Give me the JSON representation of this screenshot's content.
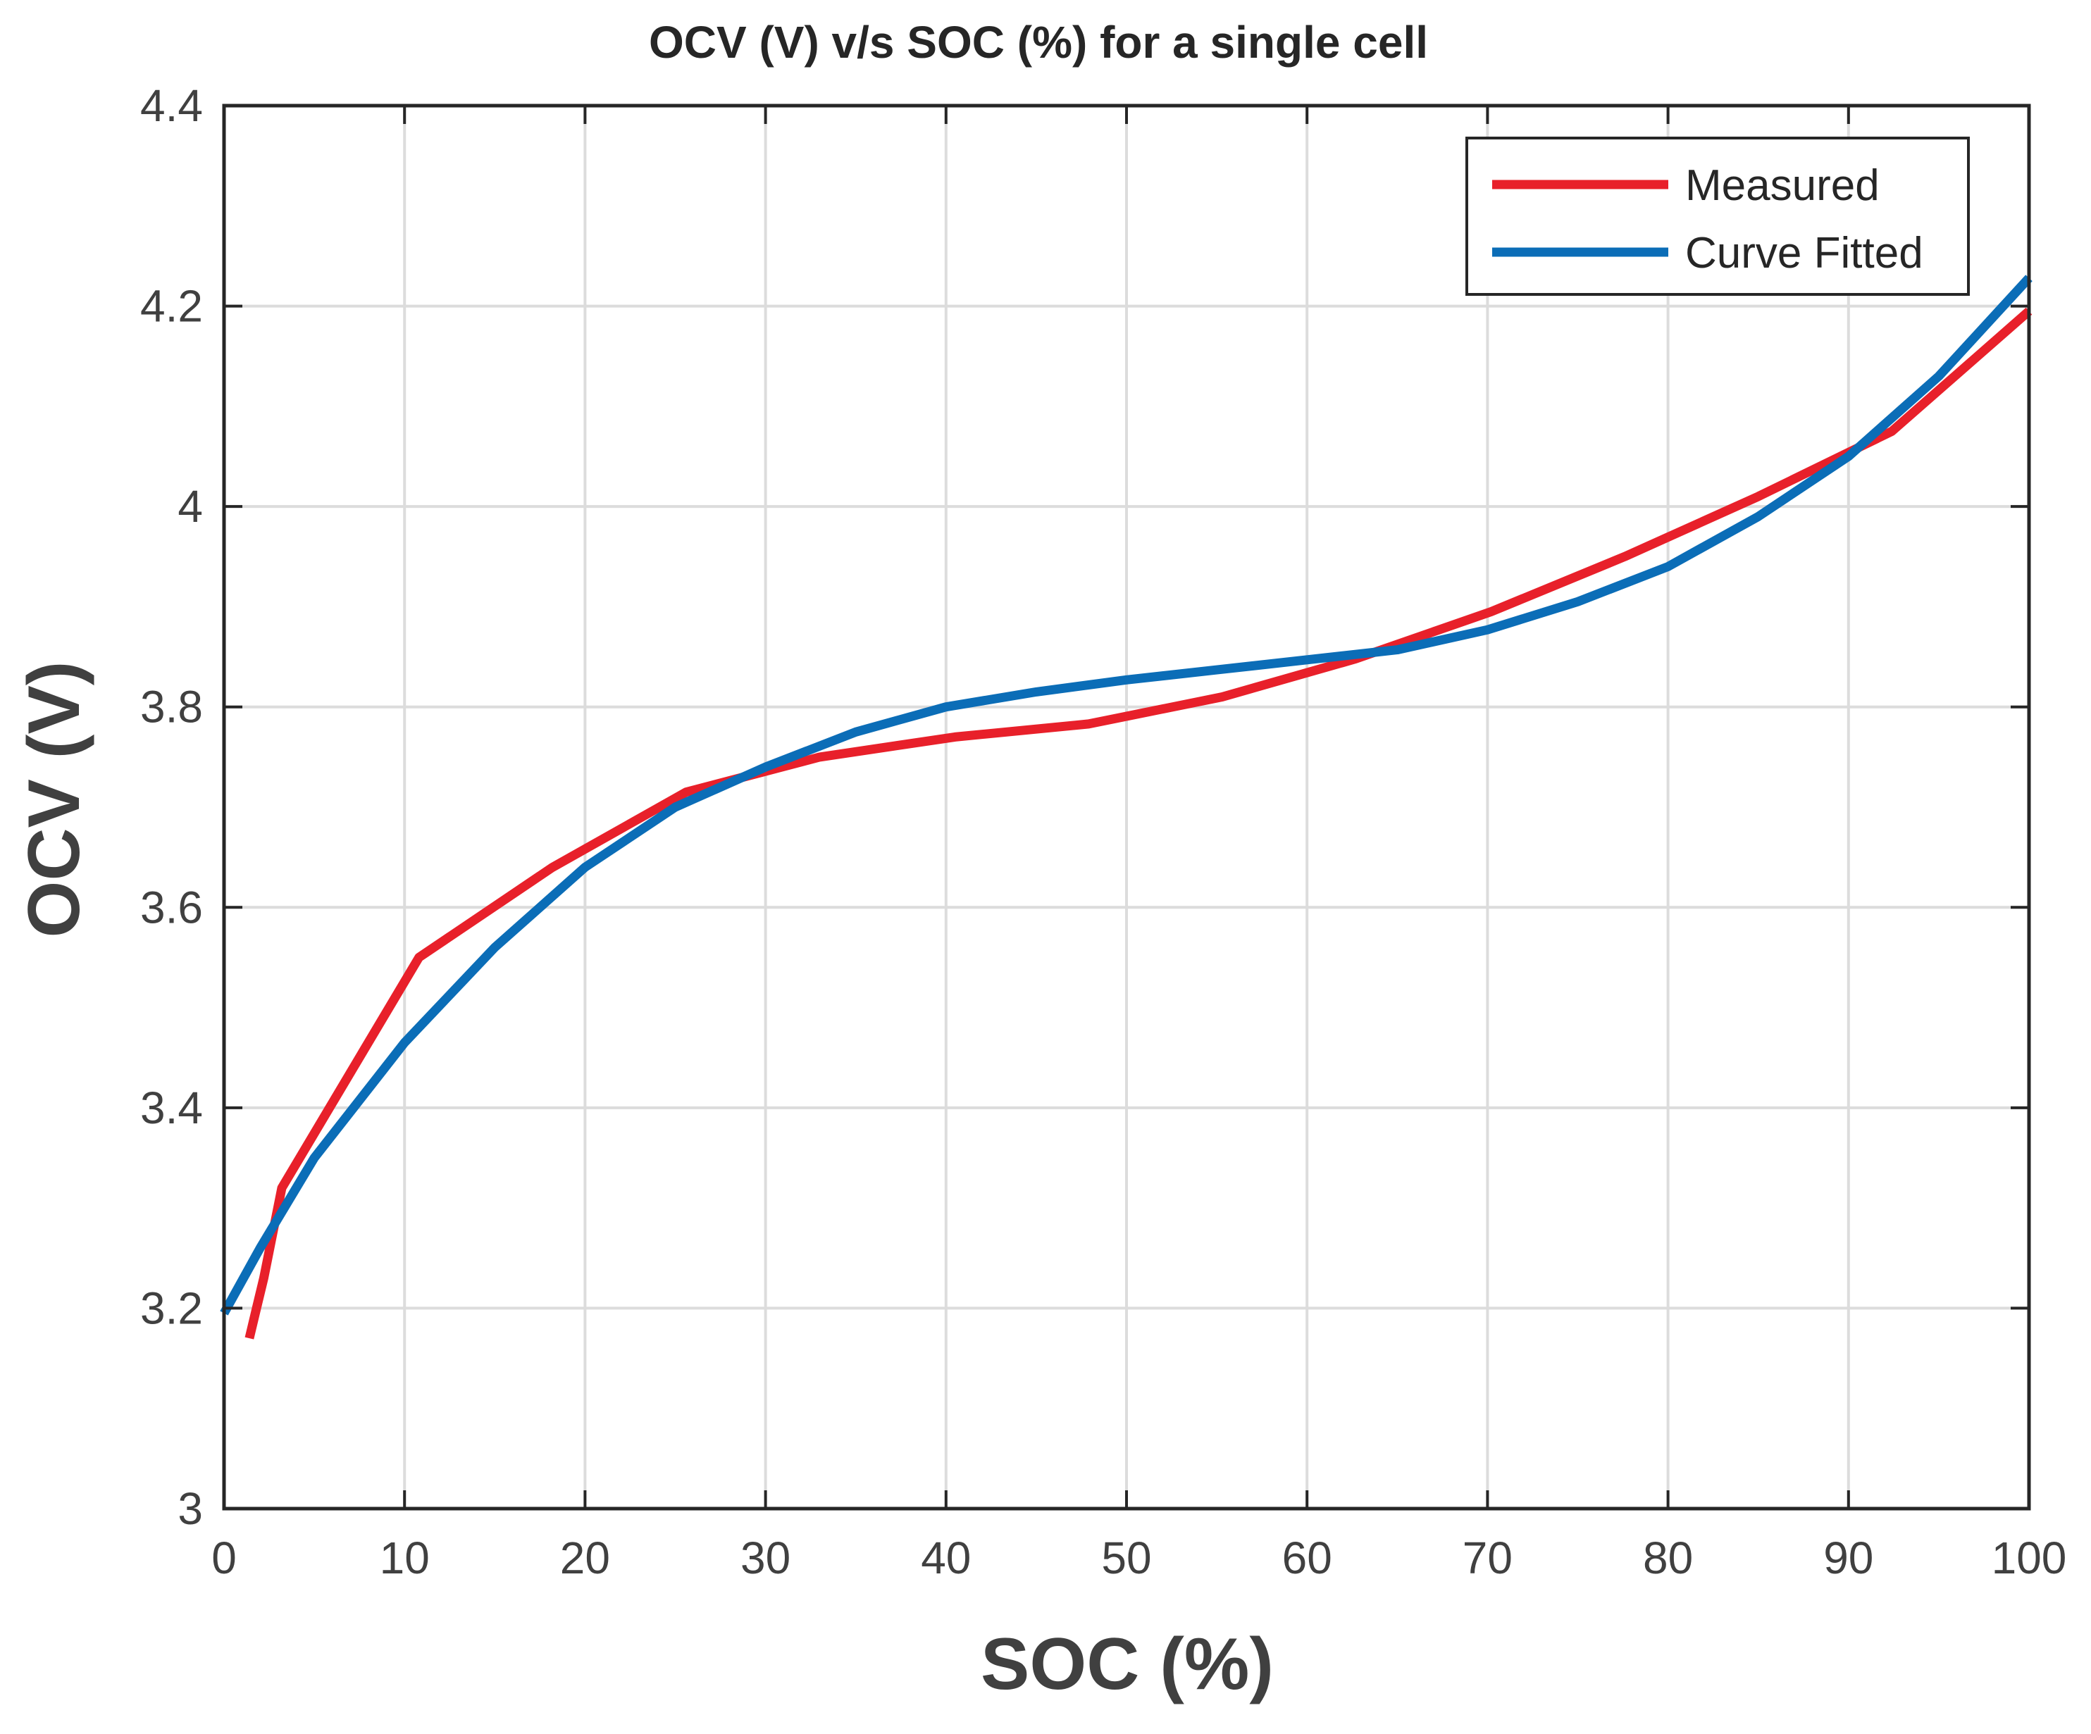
{
  "chart_data": {
    "type": "line",
    "title": "OCV (V) v/s SOC (%) for a single cell",
    "xlabel": "SOC (%)",
    "ylabel": "OCV (V)",
    "xlim": [
      0,
      100
    ],
    "ylim": [
      3,
      4.4
    ],
    "xticks": [
      0,
      10,
      20,
      30,
      40,
      50,
      60,
      70,
      80,
      90,
      100
    ],
    "xtick_labels": [
      "0",
      "10",
      "20",
      "30",
      "40",
      "50",
      "60",
      "70",
      "80",
      "90",
      "100"
    ],
    "yticks": [
      3,
      3.2,
      3.4,
      3.6,
      3.8,
      4,
      4.2,
      4.4
    ],
    "ytick_labels": [
      "3",
      "3.2",
      "3.4",
      "3.6",
      "3.8",
      "4",
      "4.2",
      "4.4"
    ],
    "grid": true,
    "legend_position": "top-right",
    "series": [
      {
        "name": "Measured",
        "color": "#e8202a",
        "x": [
          1.4,
          1.8,
          2.2,
          3.2,
          10.8,
          18.2,
          25.6,
          33.0,
          40.5,
          47.9,
          55.3,
          62.7,
          70.2,
          77.6,
          85.0,
          92.4,
          100
        ],
        "y": [
          3.17,
          3.2,
          3.23,
          3.32,
          3.55,
          3.64,
          3.715,
          3.75,
          3.77,
          3.783,
          3.81,
          3.848,
          3.895,
          3.95,
          4.01,
          4.075,
          4.195
        ]
      },
      {
        "name": "Curve Fitted",
        "color": "#0b6db7",
        "x": [
          0,
          2,
          5,
          10,
          15,
          20,
          25,
          30,
          35,
          40,
          45,
          50,
          55,
          60,
          65,
          70,
          75,
          80,
          85,
          90,
          95,
          100
        ],
        "y": [
          3.195,
          3.26,
          3.35,
          3.465,
          3.56,
          3.64,
          3.7,
          3.74,
          3.775,
          3.8,
          3.815,
          3.827,
          3.837,
          3.847,
          3.857,
          3.877,
          3.905,
          3.94,
          3.99,
          4.05,
          4.13,
          4.228
        ]
      }
    ]
  }
}
